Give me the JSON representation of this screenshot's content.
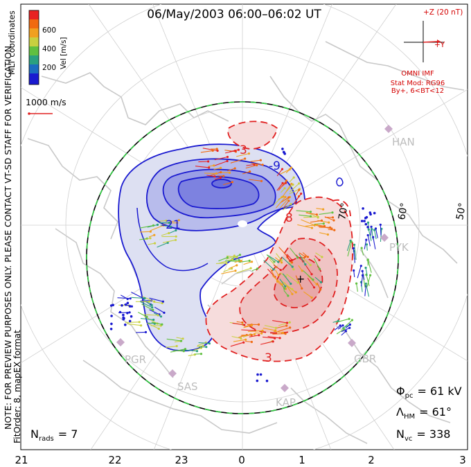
{
  "title": "06/May/2003 06:00–06:02 UT",
  "coord_system": "MLT coordinates",
  "colorbar": {
    "unit_label": "Vel [m/s]",
    "tick_labels": [
      "600",
      "400",
      "200"
    ],
    "colors": [
      "#e82222",
      "#f06a10",
      "#f0a020",
      "#c8d040",
      "#60c040",
      "#2aa080",
      "#1c6cc0",
      "#1a1ad0"
    ]
  },
  "velocity_scale_label": "1000 m/s",
  "preview_note": "NOTE: FOR PREVIEW PURPOSES ONLY. PLEASE CONTACT VT-SD STAFF FOR VERIFICATION.",
  "fit_note": "FitOrder: 8, mapEX format",
  "imf": {
    "z_label": "+Z (20 nT)",
    "y_label": "+Y",
    "source": "OMNI IMF",
    "model_line1": "Stat Mod: RG96",
    "model_line2": "By+, 6<BT<12"
  },
  "latitude_labels": [
    "70°",
    "60°",
    "50°"
  ],
  "stations": [
    "HAN",
    "PYK",
    "PGR",
    "SAS",
    "KAP",
    "GBR"
  ],
  "contour_labels": {
    "negative": [
      "-21",
      "-9"
    ],
    "positive": [
      "3",
      "3",
      "8"
    ]
  },
  "stats": {
    "phi_pc_sym": "Φ",
    "phi_pc_sub": "pc",
    "phi_pc_value": "= 61 kV",
    "lambda_hm_sym": "Λ",
    "lambda_hm_sub": "HM",
    "lambda_hm_value": "= 61°",
    "n_vc_sym": "N",
    "n_vc_sub": "vc",
    "n_vc_value": "= 338",
    "n_rads_sym": "N",
    "n_rads_sub": "rads",
    "n_rads_value": "= 7"
  },
  "mlt_ticks": [
    "21",
    "22",
    "23",
    "0",
    "1",
    "2",
    "3"
  ],
  "colors": {
    "negative_potential": "#1a1ad0",
    "positive_potential": "#e02020",
    "boundary": "#2ecc40",
    "station_marker": "#c9a9c9"
  }
}
